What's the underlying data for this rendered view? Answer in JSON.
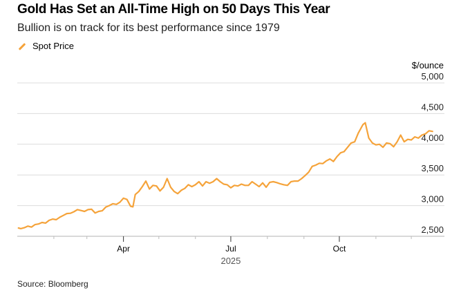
{
  "header": {
    "title": "Gold Has Set an All-Time High on 50 Days This Year",
    "subtitle": "Bullion is on track for its best performance since 1979",
    "legend_label": "Spot Price",
    "unit_label": "$/ounce"
  },
  "footer": {
    "source": "Source: Bloomberg"
  },
  "colors": {
    "line": "#f5a33a",
    "grid": "#dcdcdc",
    "axis": "#cccccc"
  },
  "chart_data": {
    "type": "line",
    "title": "Gold Has Set an All-Time High on 50 Days This Year",
    "subtitle": "Bullion is on track for its best performance since 1979",
    "xlabel": "2025",
    "ylabel": "$/ounce",
    "ylim": [
      2500,
      5000
    ],
    "yticks": [
      2500,
      3000,
      3500,
      4000,
      4500,
      5000
    ],
    "ytick_labels": [
      "2,500",
      "3,000",
      "3,500",
      "4,000",
      "4,500",
      "5,000"
    ],
    "x_domain_days": [
      0,
      365
    ],
    "xticks_major": [
      {
        "day": 90,
        "label": "Apr"
      },
      {
        "day": 181,
        "label": "Jul"
      },
      {
        "day": 273,
        "label": "Oct"
      }
    ],
    "xticks_minor": [
      31,
      59,
      120,
      151,
      212,
      243,
      304,
      334
    ],
    "grid": true,
    "legend": "top-left",
    "series": [
      {
        "name": "Spot Price",
        "x_day": [
          1,
          3,
          6,
          9,
          12,
          15,
          18,
          21,
          24,
          27,
          30,
          33,
          36,
          39,
          42,
          45,
          48,
          51,
          54,
          57,
          60,
          63,
          66,
          69,
          72,
          75,
          78,
          81,
          84,
          87,
          90,
          93,
          96,
          98,
          100,
          103,
          106,
          109,
          112,
          115,
          118,
          121,
          124,
          127,
          130,
          133,
          136,
          139,
          142,
          145,
          148,
          151,
          154,
          157,
          160,
          163,
          166,
          169,
          172,
          175,
          178,
          181,
          184,
          187,
          190,
          193,
          196,
          199,
          202,
          205,
          208,
          211,
          214,
          217,
          220,
          223,
          226,
          229,
          232,
          235,
          238,
          241,
          244,
          247,
          250,
          253,
          256,
          259,
          262,
          265,
          268,
          271,
          274,
          277,
          280,
          283,
          286,
          289,
          291,
          293,
          295,
          298,
          301,
          304,
          307,
          310,
          313,
          316,
          319,
          322,
          325,
          328,
          331,
          334,
          337,
          340,
          343,
          346,
          349,
          352
        ],
        "values": [
          2635,
          2625,
          2640,
          2665,
          2650,
          2690,
          2700,
          2725,
          2715,
          2760,
          2780,
          2770,
          2810,
          2840,
          2870,
          2875,
          2900,
          2935,
          2920,
          2905,
          2935,
          2940,
          2880,
          2905,
          2915,
          2975,
          3000,
          3030,
          3020,
          3055,
          3120,
          3100,
          2990,
          2980,
          3180,
          3230,
          3310,
          3400,
          3270,
          3330,
          3320,
          3240,
          3300,
          3440,
          3300,
          3230,
          3195,
          3250,
          3280,
          3340,
          3310,
          3340,
          3390,
          3320,
          3390,
          3365,
          3390,
          3440,
          3390,
          3350,
          3340,
          3290,
          3330,
          3320,
          3350,
          3330,
          3330,
          3390,
          3350,
          3310,
          3370,
          3300,
          3380,
          3390,
          3375,
          3355,
          3340,
          3330,
          3390,
          3400,
          3400,
          3440,
          3490,
          3545,
          3640,
          3660,
          3690,
          3685,
          3730,
          3760,
          3720,
          3800,
          3860,
          3880,
          3950,
          4020,
          4040,
          4180,
          4250,
          4320,
          4350,
          4100,
          4020,
          3990,
          4000,
          3950,
          4020,
          4010,
          3960,
          4040,
          4150,
          4040,
          4080,
          4070,
          4120,
          4100,
          4150,
          4170,
          4220,
          4210
        ]
      }
    ]
  }
}
